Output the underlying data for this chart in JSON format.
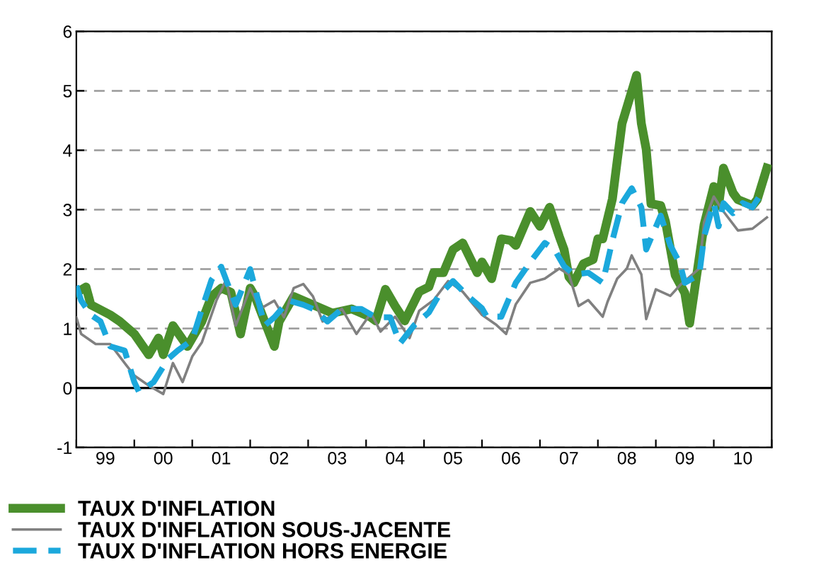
{
  "chart_data": {
    "type": "line",
    "xlim": [
      "1999-01",
      "2011-01"
    ],
    "ylim": [
      -1,
      6
    ],
    "xticks": [
      {
        "value": "1999-01",
        "label": null
      },
      {
        "value": "1999-07",
        "label": "99"
      },
      {
        "value": "2000-01",
        "label": null
      },
      {
        "value": "2000-07",
        "label": "00"
      },
      {
        "value": "2001-01",
        "label": null
      },
      {
        "value": "2001-07",
        "label": "01"
      },
      {
        "value": "2002-01",
        "label": null
      },
      {
        "value": "2002-07",
        "label": "02"
      },
      {
        "value": "2003-01",
        "label": null
      },
      {
        "value": "2003-07",
        "label": "03"
      },
      {
        "value": "2004-01",
        "label": null
      },
      {
        "value": "2004-07",
        "label": "04"
      },
      {
        "value": "2005-01",
        "label": null
      },
      {
        "value": "2005-07",
        "label": "05"
      },
      {
        "value": "2006-01",
        "label": null
      },
      {
        "value": "2006-07",
        "label": "06"
      },
      {
        "value": "2007-01",
        "label": null
      },
      {
        "value": "2007-07",
        "label": "07"
      },
      {
        "value": "2008-01",
        "label": null
      },
      {
        "value": "2008-07",
        "label": "08"
      },
      {
        "value": "2009-01",
        "label": null
      },
      {
        "value": "2009-07",
        "label": "09"
      },
      {
        "value": "2010-01",
        "label": null
      },
      {
        "value": "2010-07",
        "label": "10"
      },
      {
        "value": "2011-01",
        "label": null
      }
    ],
    "yticks": [
      -1,
      0,
      1,
      2,
      3,
      4,
      5,
      6
    ],
    "grid": "y",
    "legend": "bottom left",
    "ref_lines": [
      {
        "axis": "y",
        "value": 0,
        "color": "#000000",
        "line_style": "solid"
      }
    ],
    "series": [
      {
        "name": "TAUX D'INFLATION",
        "color": "#4a8f2c",
        "line_style": "solid",
        "x": [
          "1999-01",
          "1999-03",
          "1999-04",
          "1999-08",
          "1999-10",
          "2000-01",
          "2000-04",
          "2000-06",
          "2000-07",
          "2000-09",
          "2000-12",
          "2001-03",
          "2001-05",
          "2001-07",
          "2001-09",
          "2001-11",
          "2002-01",
          "2002-02",
          "2002-06",
          "2002-07",
          "2002-10",
          "2003-02",
          "2003-06",
          "2003-10",
          "2004-02",
          "2004-03",
          "2004-05",
          "2004-07",
          "2004-09",
          "2004-12",
          "2005-02",
          "2005-03",
          "2005-05",
          "2005-07",
          "2005-09",
          "2005-12",
          "2006-01",
          "2006-03",
          "2006-05",
          "2006-07",
          "2006-08",
          "2006-11",
          "2007-01",
          "2007-03",
          "2007-05",
          "2007-06",
          "2007-07",
          "2007-08",
          "2007-10",
          "2007-12",
          "2008-01",
          "2008-02",
          "2008-04",
          "2008-05",
          "2008-06",
          "2008-09",
          "2008-10",
          "2008-11",
          "2008-12",
          "2009-02",
          "2009-03",
          "2009-05",
          "2009-07",
          "2009-08",
          "2009-11",
          "2010-01",
          "2010-02",
          "2010-03",
          "2010-05",
          "2010-06",
          "2010-09",
          "2010-10",
          "2010-12"
        ],
        "values": [
          1.6,
          1.7,
          1.4,
          1.23,
          1.12,
          0.91,
          0.56,
          0.84,
          0.56,
          1.05,
          0.7,
          1.12,
          1.54,
          1.68,
          1.61,
          0.91,
          1.68,
          1.54,
          0.7,
          1.12,
          1.54,
          1.4,
          1.26,
          1.33,
          1.19,
          1.13,
          1.66,
          1.38,
          1.13,
          1.62,
          1.7,
          1.94,
          1.94,
          2.33,
          2.44,
          1.94,
          2.12,
          1.84,
          2.51,
          2.48,
          2.4,
          2.97,
          2.72,
          3.04,
          2.55,
          2.33,
          1.87,
          1.77,
          2.09,
          2.16,
          2.51,
          2.51,
          3.18,
          3.82,
          4.45,
          5.26,
          4.45,
          4.02,
          3.1,
          3.07,
          2.8,
          1.9,
          1.6,
          1.09,
          2.75,
          3.39,
          3.07,
          3.7,
          3.28,
          3.17,
          3.07,
          3.17,
          3.7
        ]
      },
      {
        "name": "TAUX D'INFLATION SOUS-JACENTE",
        "color": "#808080",
        "line_style": "solid",
        "x": [
          "1999-01",
          "1999-02",
          "1999-05",
          "1999-08",
          "1999-11",
          "2000-01",
          "2000-04",
          "2000-07",
          "2000-09",
          "2000-11",
          "2001-01",
          "2001-03",
          "2001-06",
          "2001-08",
          "2001-10",
          "2002-01",
          "2002-03",
          "2002-06",
          "2002-08",
          "2002-10",
          "2002-12",
          "2003-02",
          "2003-04",
          "2003-08",
          "2003-11",
          "2004-02",
          "2004-04",
          "2004-07",
          "2004-10",
          "2004-12",
          "2005-03",
          "2005-06",
          "2005-09",
          "2006-01",
          "2006-04",
          "2006-06",
          "2006-08",
          "2006-11",
          "2007-02",
          "2007-05",
          "2007-07",
          "2007-09",
          "2007-11",
          "2008-02",
          "2008-03",
          "2008-05",
          "2008-07",
          "2008-08",
          "2008-10",
          "2008-11",
          "2009-01",
          "2009-04",
          "2009-06",
          "2009-07",
          "2009-10",
          "2009-11",
          "2010-01",
          "2010-03",
          "2010-06",
          "2010-09",
          "2010-12"
        ],
        "values": [
          1.19,
          0.91,
          0.74,
          0.74,
          0.42,
          0.21,
          0.04,
          -0.1,
          0.42,
          0.1,
          0.53,
          0.77,
          1.47,
          1.82,
          1.05,
          1.68,
          1.33,
          1.47,
          1.19,
          1.68,
          1.75,
          1.54,
          1.12,
          1.33,
          0.91,
          1.26,
          0.95,
          1.2,
          0.84,
          1.3,
          1.48,
          1.8,
          1.62,
          1.23,
          1.06,
          0.91,
          1.41,
          1.77,
          1.84,
          2.01,
          1.91,
          1.38,
          1.48,
          1.2,
          1.45,
          1.84,
          2.01,
          2.23,
          1.91,
          1.16,
          1.66,
          1.55,
          1.73,
          1.8,
          2.01,
          2.79,
          3.22,
          2.97,
          2.65,
          2.68,
          2.87
        ]
      },
      {
        "name": "TAUX D'INFLATION HORS ENERGIE",
        "color": "#1ba8dc",
        "line_style": "dashed",
        "x": [
          "1999-01",
          "1999-02",
          "1999-04",
          "1999-06",
          "1999-08",
          "1999-11",
          "2000-01",
          "2000-02",
          "2000-05",
          "2000-08",
          "2000-10",
          "2001-01",
          "2001-03",
          "2001-05",
          "2001-07",
          "2001-09",
          "2001-10",
          "2002-01",
          "2002-02",
          "2002-04",
          "2002-06",
          "2002-09",
          "2002-12",
          "2003-02",
          "2003-05",
          "2003-08",
          "2003-12",
          "2004-03",
          "2004-06",
          "2004-08",
          "2004-11",
          "2005-02",
          "2005-04",
          "2005-07",
          "2005-10",
          "2006-01",
          "2006-02",
          "2006-05",
          "2006-08",
          "2006-11",
          "2007-02",
          "2007-04",
          "2007-06",
          "2007-08",
          "2007-11",
          "2008-02",
          "2008-04",
          "2008-06",
          "2008-08",
          "2008-10",
          "2008-11",
          "2009-02",
          "2009-04",
          "2009-06",
          "2009-07",
          "2009-10",
          "2009-11",
          "2010-01",
          "2010-02",
          "2010-03",
          "2010-05",
          "2010-07",
          "2010-09",
          "2010-11"
        ],
        "values": [
          1.72,
          1.47,
          1.23,
          1.12,
          0.7,
          0.63,
          0.1,
          -0.07,
          0.1,
          0.49,
          0.63,
          0.81,
          1.33,
          1.82,
          2.04,
          1.61,
          1.4,
          2.0,
          1.68,
          1.05,
          1.19,
          1.47,
          1.4,
          1.33,
          1.12,
          1.33,
          1.33,
          1.19,
          1.19,
          0.75,
          1.06,
          1.27,
          1.55,
          1.8,
          1.55,
          1.34,
          1.2,
          1.2,
          1.77,
          2.12,
          2.44,
          2.33,
          2.05,
          1.91,
          1.94,
          1.77,
          2.48,
          3.11,
          3.36,
          3.04,
          2.33,
          2.9,
          2.4,
          2.09,
          1.77,
          1.91,
          2.55,
          3.11,
          2.72,
          3.11,
          2.94,
          3.11,
          3.04,
          3.29
        ]
      }
    ]
  }
}
